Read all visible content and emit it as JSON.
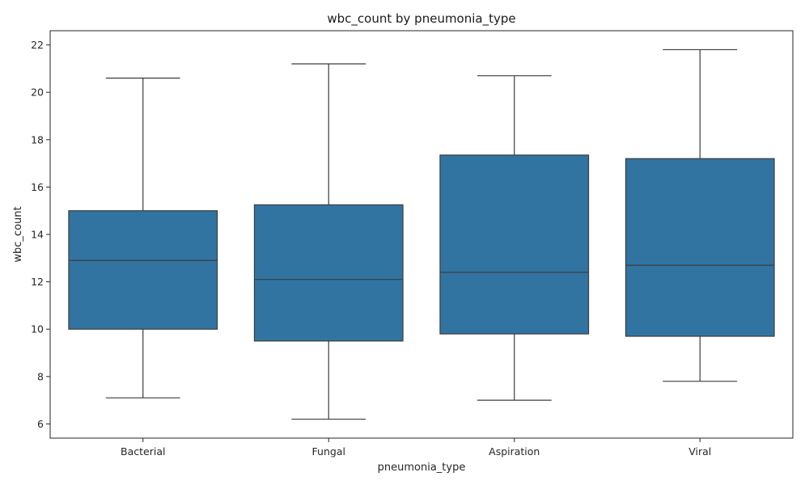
{
  "chart_data": {
    "type": "box",
    "title": "wbc_count by pneumonia_type",
    "xlabel": "pneumonia_type",
    "ylabel": "wbc_count",
    "categories": [
      "Bacterial",
      "Fungal",
      "Aspiration",
      "Viral"
    ],
    "boxes": [
      {
        "category": "Bacterial",
        "whisker_low": 7.1,
        "q1": 10.0,
        "median": 12.9,
        "q3": 15.0,
        "whisker_high": 20.6
      },
      {
        "category": "Fungal",
        "whisker_low": 6.2,
        "q1": 9.5,
        "median": 12.1,
        "q3": 15.25,
        "whisker_high": 21.2
      },
      {
        "category": "Aspiration",
        "whisker_low": 7.0,
        "q1": 9.8,
        "median": 12.4,
        "q3": 17.35,
        "whisker_high": 20.7
      },
      {
        "category": "Viral",
        "whisker_low": 7.8,
        "q1": 9.7,
        "median": 12.7,
        "q3": 17.2,
        "whisker_high": 21.8
      }
    ],
    "ylim": [
      5.4,
      22.6
    ],
    "yticks": [
      6,
      8,
      10,
      12,
      14,
      16,
      18,
      20,
      22
    ],
    "grid": false,
    "legend": "none",
    "colors": {
      "box_fill": "#3274a1",
      "line": "#3d3d3d",
      "axis": "#262626",
      "background": "#ffffff"
    }
  }
}
